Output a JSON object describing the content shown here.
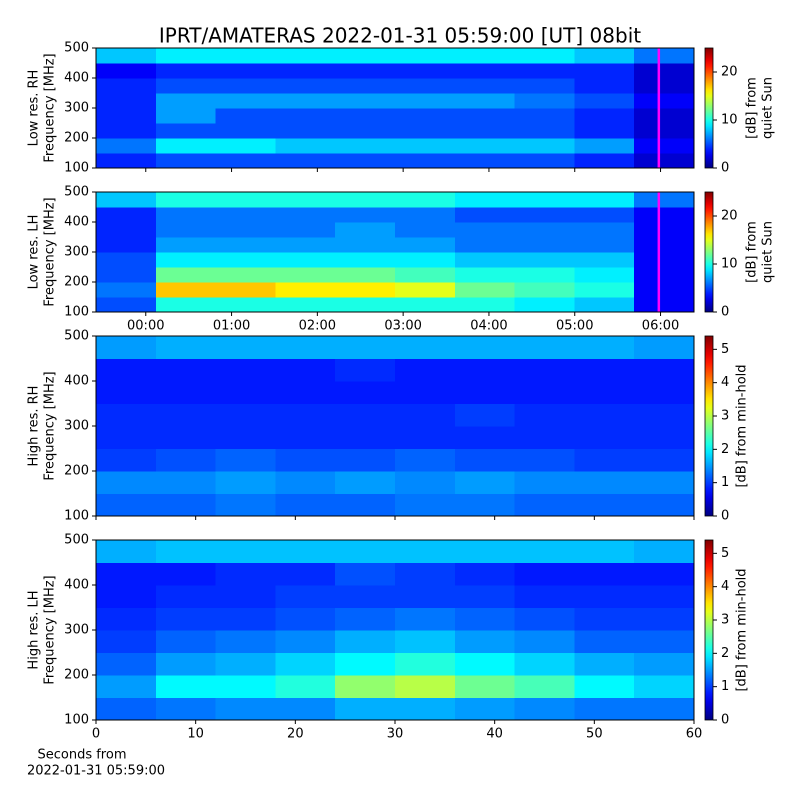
{
  "chart_data": [
    {
      "type": "heatmap",
      "title": "IPRT/AMATERAS 2022-01-31 05:59:00 [UT]   08bit",
      "ylabel": [
        "Low res. RH",
        "Frequency [MHz]"
      ],
      "colormap": "jet",
      "xlim": [
        -0.58,
        6.39
      ],
      "xticks": [
        0,
        1,
        2,
        3,
        4,
        5,
        6
      ],
      "xtick_labels": false,
      "ylim": [
        100,
        500
      ],
      "yticks": [
        100,
        200,
        300,
        400,
        500
      ],
      "vline": {
        "x": 5.98,
        "color": "#ff00ff"
      },
      "colorbar": {
        "label": [
          "[dB] from",
          "quiet Sun"
        ],
        "range": [
          0,
          25
        ],
        "ticks": [
          0,
          10,
          20
        ]
      },
      "z": [
        [
          4,
          5,
          5,
          5,
          5,
          5,
          5,
          5,
          4,
          2
        ],
        [
          6,
          9,
          9,
          8,
          8,
          8,
          8,
          8,
          7,
          3
        ],
        [
          4,
          5,
          5,
          5,
          5,
          5,
          5,
          5,
          4,
          2
        ],
        [
          4,
          7,
          5,
          5,
          5,
          5,
          5,
          5,
          4,
          2
        ],
        [
          4,
          7,
          7,
          7,
          7,
          7,
          7,
          6,
          5,
          3
        ],
        [
          4,
          5,
          5,
          5,
          5,
          5,
          5,
          5,
          4,
          2
        ],
        [
          3,
          4,
          4,
          4,
          4,
          4,
          4,
          4,
          4,
          2
        ],
        [
          8,
          9,
          9,
          9,
          9,
          9,
          9,
          9,
          8,
          6
        ]
      ]
    },
    {
      "type": "heatmap",
      "ylabel": [
        "Low res. LH",
        "Frequency [MHz]"
      ],
      "colormap": "jet",
      "xlim": [
        -0.58,
        6.39
      ],
      "xticks": [
        {
          "value": 0,
          "label": "00:00"
        },
        {
          "value": 1,
          "label": "01:00"
        },
        {
          "value": 2,
          "label": "02:00"
        },
        {
          "value": 3,
          "label": "03:00"
        },
        {
          "value": 4,
          "label": "04:00"
        },
        {
          "value": 5,
          "label": "05:00"
        },
        {
          "value": 6,
          "label": "06:00"
        }
      ],
      "ylim": [
        100,
        500
      ],
      "yticks": [
        100,
        200,
        300,
        400,
        500
      ],
      "vline": {
        "x": 5.98,
        "color": "#ff00ff"
      },
      "colorbar": {
        "label": [
          "[dB] from",
          "quiet Sun"
        ],
        "range": [
          0,
          25
        ],
        "ticks": [
          0,
          10,
          20
        ]
      },
      "z": [
        [
          5,
          10,
          10,
          10,
          10,
          10,
          10,
          9,
          8,
          3
        ],
        [
          6,
          17,
          17,
          16,
          16,
          15,
          12,
          11,
          10,
          3
        ],
        [
          5,
          12,
          12,
          12,
          12,
          11,
          10,
          10,
          9,
          3
        ],
        [
          5,
          9,
          9,
          9,
          9,
          9,
          8,
          8,
          8,
          3
        ],
        [
          4,
          7,
          7,
          7,
          7,
          7,
          6,
          6,
          6,
          3
        ],
        [
          4,
          6,
          6,
          6,
          7,
          6,
          6,
          6,
          6,
          3
        ],
        [
          4,
          6,
          6,
          6,
          6,
          6,
          5,
          5,
          5,
          3
        ],
        [
          8,
          10,
          10,
          10,
          10,
          10,
          9,
          9,
          9,
          6
        ]
      ]
    },
    {
      "type": "heatmap",
      "ylabel": [
        "High res. RH",
        "Frequency [MHz]"
      ],
      "colormap": "jet",
      "xlim": [
        0,
        60
      ],
      "xticks": [
        0,
        10,
        20,
        30,
        40,
        50,
        60
      ],
      "xtick_labels": false,
      "ylim": [
        100,
        500
      ],
      "yticks": [
        100,
        200,
        300,
        400,
        500
      ],
      "colorbar": {
        "label": [
          "[dB] from min-hold"
        ],
        "range": [
          0,
          5.4
        ],
        "ticks": [
          0,
          1,
          2,
          3,
          4,
          5
        ]
      },
      "z": [
        [
          1.2,
          1.2,
          1.3,
          1.2,
          1.2,
          1.3,
          1.3,
          1.2,
          1.2,
          1.2
        ],
        [
          1.4,
          1.4,
          1.5,
          1.4,
          1.5,
          1.4,
          1.5,
          1.4,
          1.4,
          1.4
        ],
        [
          1.0,
          1.1,
          1.2,
          1.1,
          1.1,
          1.2,
          1.1,
          1.1,
          1.0,
          1.0
        ],
        [
          0.9,
          0.9,
          0.9,
          0.9,
          0.9,
          0.9,
          0.9,
          0.9,
          0.9,
          0.9
        ],
        [
          0.9,
          0.9,
          0.9,
          0.9,
          0.9,
          0.9,
          1.0,
          0.9,
          0.9,
          0.9
        ],
        [
          0.8,
          0.8,
          0.8,
          0.8,
          0.8,
          0.8,
          0.8,
          0.8,
          0.8,
          0.8
        ],
        [
          0.8,
          0.8,
          0.8,
          0.8,
          0.9,
          0.8,
          0.8,
          0.8,
          0.8,
          0.8
        ],
        [
          1.5,
          1.6,
          1.6,
          1.6,
          1.6,
          1.6,
          1.6,
          1.6,
          1.6,
          1.5
        ]
      ]
    },
    {
      "type": "heatmap",
      "ylabel": [
        "High res. LH",
        "Frequency [MHz]"
      ],
      "colormap": "jet",
      "xlim": [
        0,
        60
      ],
      "xticks": [
        0,
        10,
        20,
        30,
        40,
        50,
        60
      ],
      "xlabel": [
        "Seconds from",
        "2022-01-31 05:59:00"
      ],
      "ylim": [
        100,
        500
      ],
      "yticks": [
        100,
        200,
        300,
        400,
        500
      ],
      "colorbar": {
        "label": [
          "[dB] from min-hold"
        ],
        "range": [
          0,
          5.4
        ],
        "ticks": [
          0,
          1,
          2,
          3,
          4,
          5
        ]
      },
      "z": [
        [
          1.2,
          1.3,
          1.4,
          1.4,
          1.6,
          1.6,
          1.5,
          1.4,
          1.3,
          1.3
        ],
        [
          1.5,
          2.0,
          2.0,
          2.2,
          2.8,
          3.0,
          2.6,
          2.4,
          2.0,
          1.8
        ],
        [
          1.2,
          1.5,
          1.6,
          1.8,
          2.0,
          2.2,
          2.0,
          1.8,
          1.6,
          1.5
        ],
        [
          1.0,
          1.2,
          1.3,
          1.4,
          1.6,
          1.7,
          1.5,
          1.4,
          1.2,
          1.2
        ],
        [
          0.9,
          1.0,
          1.0,
          1.1,
          1.2,
          1.3,
          1.2,
          1.1,
          1.0,
          1.0
        ],
        [
          0.8,
          0.9,
          0.9,
          1.0,
          1.0,
          1.0,
          1.0,
          0.9,
          0.9,
          0.9
        ],
        [
          0.8,
          0.8,
          0.9,
          0.9,
          1.1,
          1.0,
          0.9,
          0.8,
          0.8,
          0.8
        ],
        [
          1.6,
          1.7,
          1.7,
          1.7,
          1.7,
          1.7,
          1.7,
          1.7,
          1.7,
          1.6
        ]
      ]
    }
  ]
}
